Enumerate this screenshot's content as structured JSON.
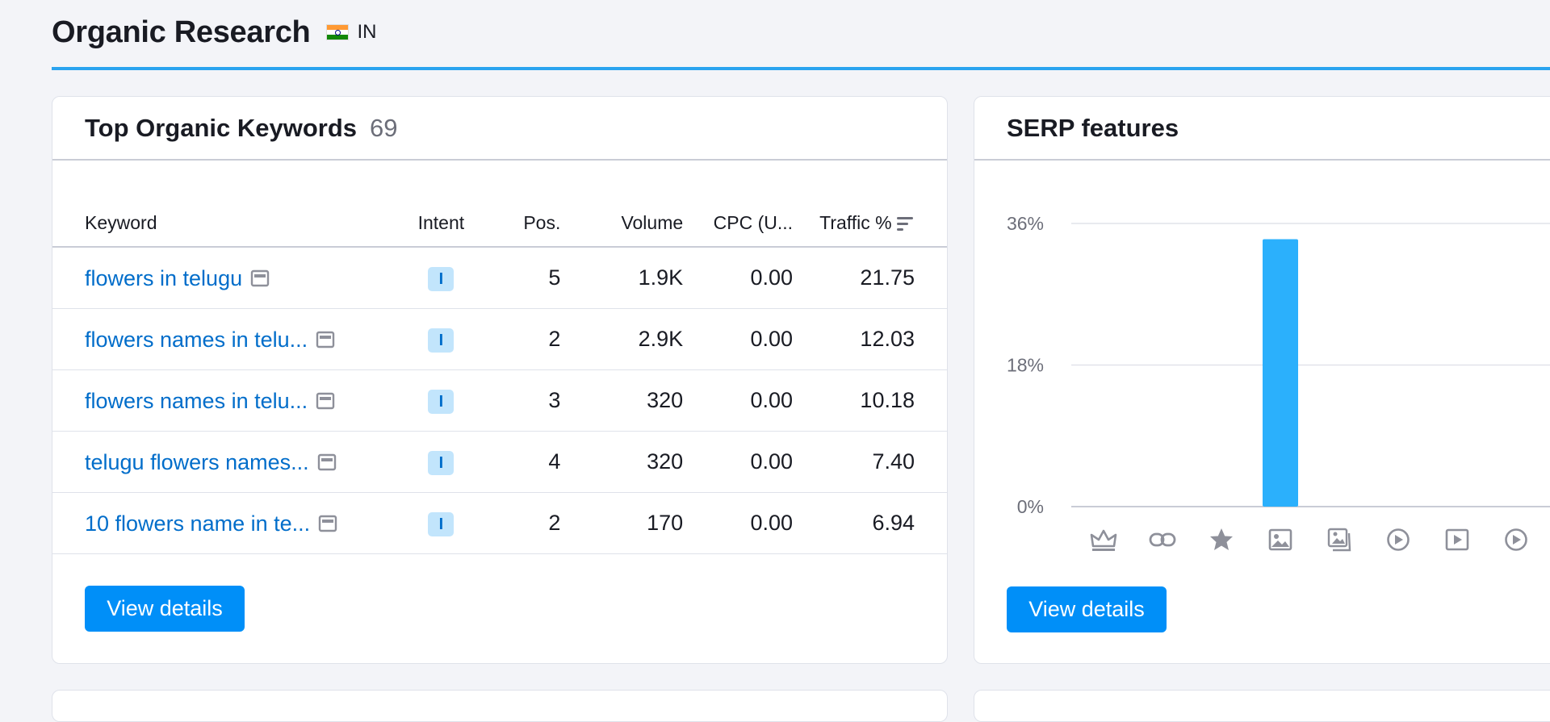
{
  "page": {
    "title": "Organic Research",
    "country": "IN",
    "accent_color": "#2aa3ef"
  },
  "keywords_card": {
    "title": "Top Organic Keywords",
    "count": "69",
    "columns": [
      "Keyword",
      "Intent",
      "Pos.",
      "Volume",
      "CPC (U...",
      "Traffic %"
    ],
    "rows": [
      {
        "keyword": "flowers in telugu",
        "intent": "I",
        "pos": "5",
        "volume": "1.9K",
        "cpc": "0.00",
        "traffic": "21.75"
      },
      {
        "keyword": "flowers names in telu...",
        "intent": "I",
        "pos": "2",
        "volume": "2.9K",
        "cpc": "0.00",
        "traffic": "12.03"
      },
      {
        "keyword": "flowers names in telu...",
        "intent": "I",
        "pos": "3",
        "volume": "320",
        "cpc": "0.00",
        "traffic": "10.18"
      },
      {
        "keyword": "telugu flowers names...",
        "intent": "I",
        "pos": "4",
        "volume": "320",
        "cpc": "0.00",
        "traffic": "7.40"
      },
      {
        "keyword": "10 flowers name in te...",
        "intent": "I",
        "pos": "2",
        "volume": "170",
        "cpc": "0.00",
        "traffic": "6.94"
      }
    ],
    "view_details_label": "View details"
  },
  "serp_card": {
    "title": "SERP features",
    "view_details_label": "View details",
    "icons": [
      "crown-icon",
      "link-icon",
      "star-icon",
      "image-icon",
      "image-pack-icon",
      "video-play-icon",
      "video-box-icon",
      "video-play-icon"
    ]
  },
  "chart_data": {
    "type": "bar",
    "categories": [
      "featured snippet",
      "sitelinks",
      "reviews",
      "image",
      "image pack",
      "video",
      "featured video",
      "video carousel"
    ],
    "values": [
      0,
      0,
      0,
      34,
      0,
      0,
      0,
      0
    ],
    "yticks": [
      "0%",
      "18%",
      "36%"
    ],
    "ylim": [
      0,
      36
    ],
    "bar_color": "#2bb0fc",
    "grid": true
  }
}
